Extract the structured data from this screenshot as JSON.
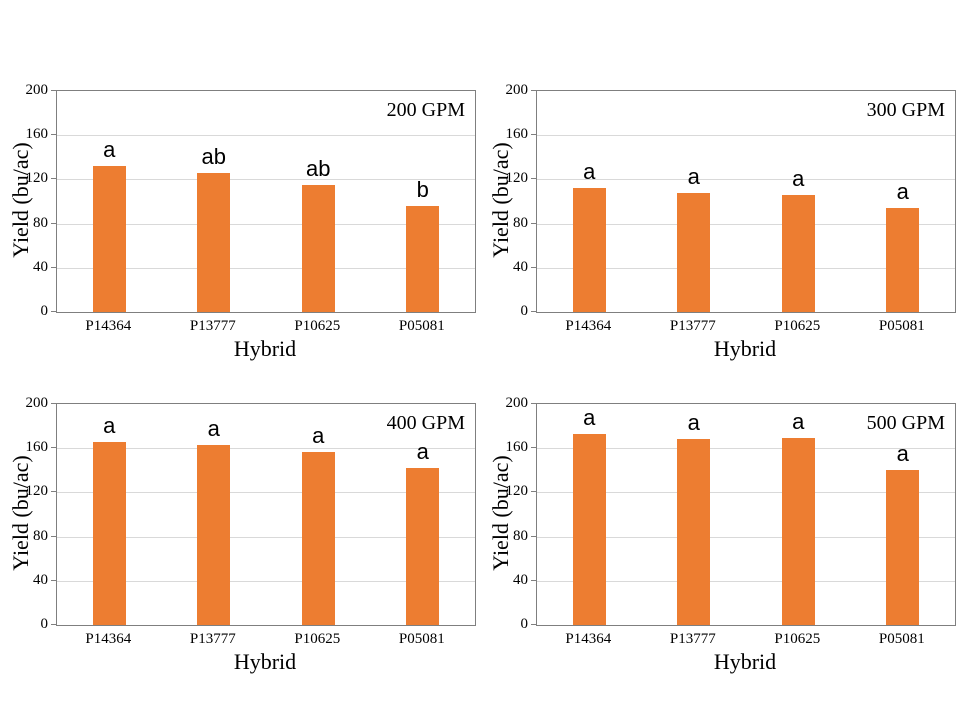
{
  "style": {
    "bar_color": "#ED7D31",
    "grid_color": "#d9d9d9",
    "axis_color": "#7f7f7f",
    "text_color": "#000000",
    "background": "#ffffff"
  },
  "chart_data": [
    {
      "type": "bar",
      "title": "200 GPM",
      "xlabel": "Hybrid",
      "ylabel": "Yield (bu/ac)",
      "categories": [
        "P14364",
        "P13777",
        "P10625",
        "P05081"
      ],
      "values": [
        132,
        126,
        115,
        96
      ],
      "sig_letters": [
        "a",
        "ab",
        "ab",
        "b"
      ],
      "ylim": [
        0,
        200
      ],
      "yticks": [
        0,
        40,
        80,
        120,
        160,
        200
      ],
      "bar_color": "#ED7D31",
      "grid": true,
      "legend": "none"
    },
    {
      "type": "bar",
      "title": "300 GPM",
      "xlabel": "Hybrid",
      "ylabel": "Yield (bu/ac)",
      "categories": [
        "P14364",
        "P13777",
        "P10625",
        "P05081"
      ],
      "values": [
        112,
        108,
        106,
        94
      ],
      "sig_letters": [
        "a",
        "a",
        "a",
        "a"
      ],
      "ylim": [
        0,
        200
      ],
      "yticks": [
        0,
        40,
        80,
        120,
        160,
        200
      ],
      "bar_color": "#ED7D31",
      "grid": true,
      "legend": "none"
    },
    {
      "type": "bar",
      "title": "400 GPM",
      "xlabel": "Hybrid",
      "ylabel": "Yield (bu/ac)",
      "categories": [
        "P14364",
        "P13777",
        "P10625",
        "P05081"
      ],
      "values": [
        166,
        163,
        157,
        142
      ],
      "sig_letters": [
        "a",
        "a",
        "a",
        "a"
      ],
      "ylim": [
        0,
        200
      ],
      "yticks": [
        0,
        40,
        80,
        120,
        160,
        200
      ],
      "bar_color": "#ED7D31",
      "grid": true,
      "legend": "none"
    },
    {
      "type": "bar",
      "title": "500 GPM",
      "xlabel": "Hybrid",
      "ylabel": "Yield (bu/ac)",
      "categories": [
        "P14364",
        "P13777",
        "P10625",
        "P05081"
      ],
      "values": [
        173,
        168,
        169,
        140
      ],
      "sig_letters": [
        "a",
        "a",
        "a",
        "a"
      ],
      "ylim": [
        0,
        200
      ],
      "yticks": [
        0,
        40,
        80,
        120,
        160,
        200
      ],
      "bar_color": "#ED7D31",
      "grid": true,
      "legend": "none"
    }
  ]
}
